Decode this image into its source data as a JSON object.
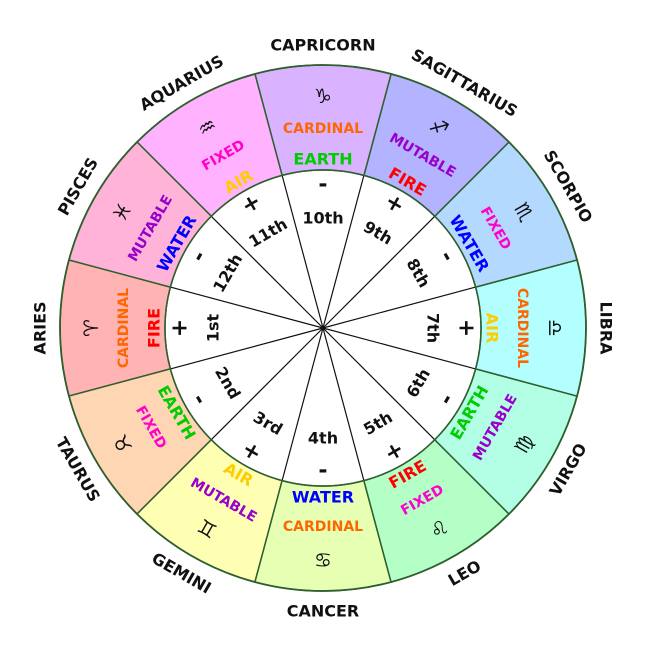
{
  "colors": {
    "cardinal": "#ff6600",
    "fixed": "#ff00cc",
    "mutable": "#9900cc",
    "fire": "#ff0000",
    "earth": "#00cc00",
    "air": "#ffcc00",
    "water": "#0000ff"
  },
  "signs": [
    {
      "name": "ARIES",
      "glyph": "♈",
      "quality": "CARDINAL",
      "element": "FIRE",
      "house": "1st",
      "polarity": "+",
      "fill": "#ffb3b3"
    },
    {
      "name": "TAURUS",
      "glyph": "♉",
      "quality": "FIXED",
      "element": "EARTH",
      "house": "2nd",
      "polarity": "-",
      "fill": "#ffd6b3"
    },
    {
      "name": "GEMINI",
      "glyph": "♊",
      "quality": "MUTABLE",
      "element": "AIR",
      "house": "3rd",
      "polarity": "+",
      "fill": "#ffffb3"
    },
    {
      "name": "CANCER",
      "glyph": "♋",
      "quality": "CARDINAL",
      "element": "WATER",
      "house": "4th",
      "polarity": "-",
      "fill": "#e6ffb3"
    },
    {
      "name": "LEO",
      "glyph": "♌",
      "quality": "FIXED",
      "element": "FIRE",
      "house": "5th",
      "polarity": "+",
      "fill": "#b3ffc6"
    },
    {
      "name": "VIRGO",
      "glyph": "♍",
      "quality": "MUTABLE",
      "element": "EARTH",
      "house": "6th",
      "polarity": "-",
      "fill": "#b3ffe6"
    },
    {
      "name": "LIBRA",
      "glyph": "♎",
      "quality": "CARDINAL",
      "element": "AIR",
      "house": "7th",
      "polarity": "+",
      "fill": "#b3ffff"
    },
    {
      "name": "SCORPIO",
      "glyph": "♏",
      "quality": "FIXED",
      "element": "WATER",
      "house": "8th",
      "polarity": "-",
      "fill": "#b3d9ff"
    },
    {
      "name": "SAGITTARIUS",
      "glyph": "♐",
      "quality": "MUTABLE",
      "element": "FIRE",
      "house": "9th",
      "polarity": "+",
      "fill": "#b3b3ff"
    },
    {
      "name": "CAPRICORN",
      "glyph": "♑",
      "quality": "CARDINAL",
      "element": "EARTH",
      "house": "10th",
      "polarity": "-",
      "fill": "#d9b3ff"
    },
    {
      "name": "AQUARIUS",
      "glyph": "♒",
      "quality": "FIXED",
      "element": "AIR",
      "house": "11th",
      "polarity": "+",
      "fill": "#ffb3ff"
    },
    {
      "name": "PISCES",
      "glyph": "♓",
      "quality": "MUTABLE",
      "element": "WATER",
      "house": "12th",
      "polarity": "-",
      "fill": "#ffb3d9"
    }
  ]
}
